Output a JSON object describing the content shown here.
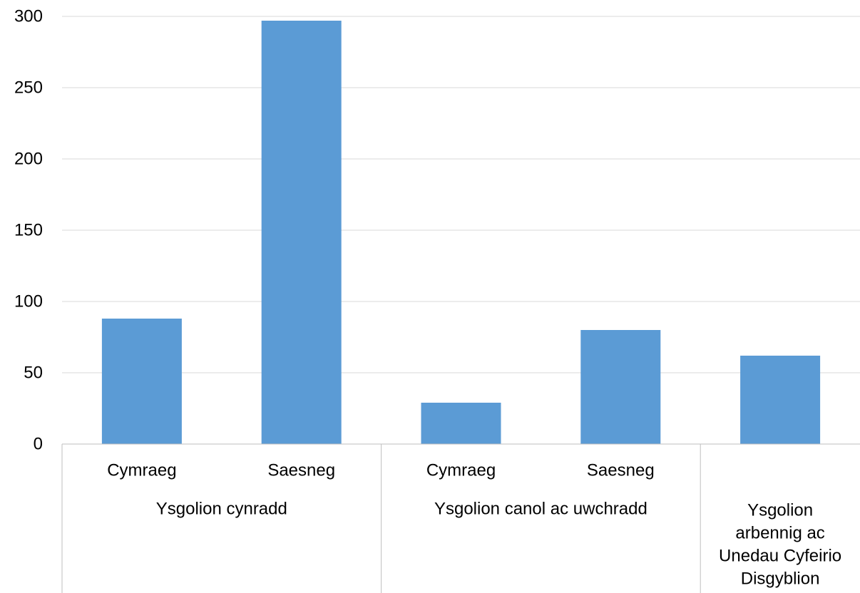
{
  "chart_data": {
    "type": "bar",
    "title": "",
    "xlabel": "",
    "ylabel": "",
    "ylim": [
      0,
      300
    ],
    "yticks": [
      0,
      50,
      100,
      150,
      200,
      250,
      300
    ],
    "grid": true,
    "legend": "none",
    "bar_color": "#5b9bd5",
    "categories": [
      {
        "label": "Cymraeg",
        "group": "Ysgolion cynradd",
        "value": 88
      },
      {
        "label": "Saesneg",
        "group": "Ysgolion cynradd",
        "value": 297
      },
      {
        "label": "Cymraeg",
        "group": "Ysgolion canol ac uwchradd",
        "value": 29
      },
      {
        "label": "Saesneg",
        "group": "Ysgolion canol ac uwchradd",
        "value": 80
      },
      {
        "label": "",
        "group": "Ysgolion arbennig ac Unedau Cyfeirio Disgyblion",
        "value": 62
      }
    ],
    "groups": [
      {
        "label": "Ysgolion cynradd",
        "lines": [
          "Ysgolion cynradd"
        ]
      },
      {
        "label": "Ysgolion canol ac uwchradd",
        "lines": [
          "Ysgolion canol ac uwchradd"
        ]
      },
      {
        "label": "Ysgolion arbennig ac Unedau Cyfeirio Disgyblion",
        "lines": [
          "Ysgolion",
          "arbennig ac",
          "Unedau Cyfeirio",
          "Disgyblion"
        ]
      }
    ]
  }
}
